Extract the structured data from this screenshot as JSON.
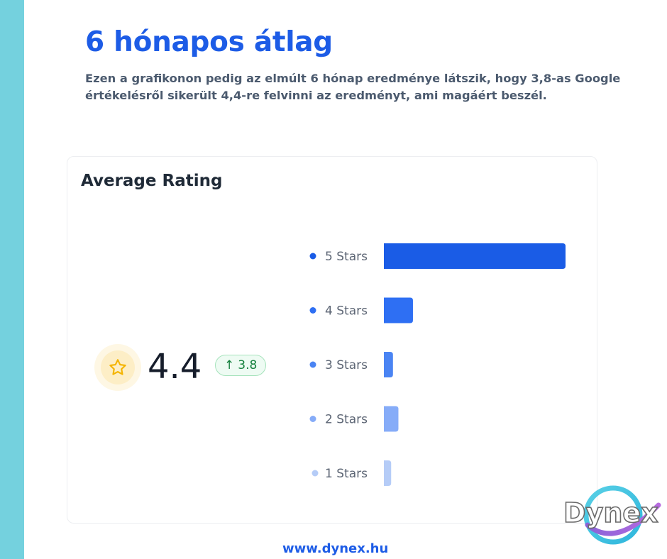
{
  "header": {
    "title": "6 hónapos átlag",
    "subtitle": "Ezen a grafikonon pedig az elmúlt 6 hónap eredménye látszik, hogy 3,8-as Google értékelésről sikerült 4,4-re felvinni az eredményt, ami magáért beszél."
  },
  "card": {
    "title": "Average Rating",
    "rating": "4.4",
    "previous_rating": "3.8",
    "star_color": "#f4b400"
  },
  "chart_data": {
    "type": "bar",
    "orientation": "horizontal",
    "title": "Average Rating",
    "categories": [
      "5 Stars",
      "4 Stars",
      "3 Stars",
      "2 Stars",
      "1 Stars"
    ],
    "values": [
      100,
      16,
      5,
      8,
      4
    ],
    "colors": [
      "#1a5ce6",
      "#2e6ff3",
      "#4a84f3",
      "#86acf8",
      "#b5ccf7"
    ],
    "xlim": [
      0,
      100
    ],
    "grid": false,
    "axes_visible": false
  },
  "footer": {
    "url": "www.dynex.hu",
    "logo_text": "Dynex"
  },
  "colors": {
    "accent": "#1d5ce6",
    "stripe": "#74d1de",
    "positive": "#15803d"
  }
}
